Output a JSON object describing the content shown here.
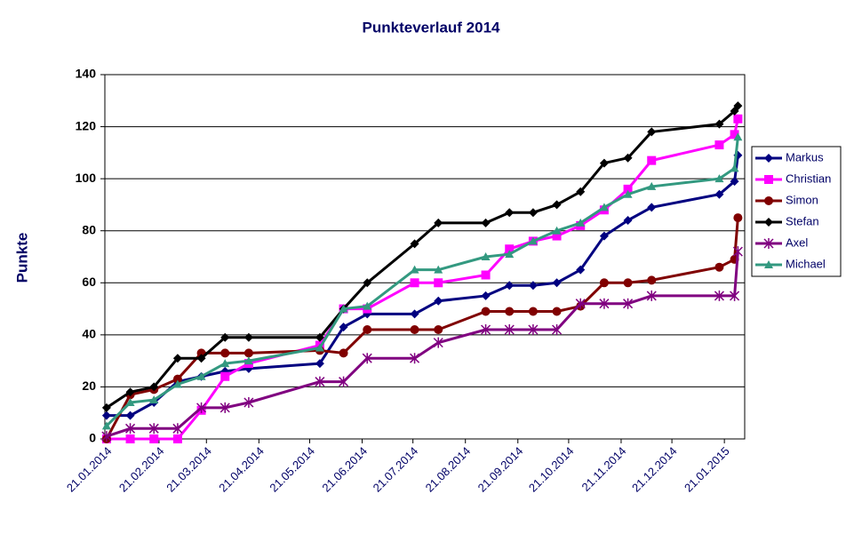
{
  "chart_data": {
    "type": "line",
    "title": "Punkteverlauf 2014",
    "y_label": "Punkte",
    "x": [
      "2014-01-21",
      "2014-02-04",
      "2014-02-18",
      "2014-03-04",
      "2014-03-18",
      "2014-04-01",
      "2014-04-15",
      "2014-05-27",
      "2014-06-10",
      "2014-06-24",
      "2014-07-22",
      "2014-08-05",
      "2014-09-02",
      "2014-09-16",
      "2014-09-30",
      "2014-10-14",
      "2014-10-28",
      "2014-11-11",
      "2014-11-25",
      "2014-12-09",
      "2015-01-18",
      "2015-01-27",
      "2015-01-29"
    ],
    "xlim": [
      "2014-01-20",
      "2015-02-02"
    ],
    "xticks": [
      {
        "value": "2014-01-21",
        "label": "21.01.2014"
      },
      {
        "value": "2014-02-21",
        "label": "21.02.2014"
      },
      {
        "value": "2014-03-21",
        "label": "21.03.2014"
      },
      {
        "value": "2014-04-21",
        "label": "21.04.2014"
      },
      {
        "value": "2014-05-21",
        "label": "21.05.2014"
      },
      {
        "value": "2014-06-21",
        "label": "21.06.2014"
      },
      {
        "value": "2014-07-21",
        "label": "21.07.2014"
      },
      {
        "value": "2014-08-21",
        "label": "21.08.2014"
      },
      {
        "value": "2014-09-21",
        "label": "21.09.2014"
      },
      {
        "value": "2014-10-21",
        "label": "21.10.2014"
      },
      {
        "value": "2014-11-21",
        "label": "21.11.2014"
      },
      {
        "value": "2014-12-21",
        "label": "21.12.2014"
      },
      {
        "value": "2015-01-21",
        "label": "21.01.2015"
      }
    ],
    "ylim": [
      0,
      140
    ],
    "yticks": [
      0,
      20,
      40,
      60,
      80,
      100,
      120,
      140
    ],
    "grid": true,
    "legend": "right",
    "series": [
      {
        "name": "Markus",
        "color": "#000080",
        "marker": "diamond",
        "values": [
          9,
          9,
          14,
          22,
          24,
          26,
          27,
          29,
          43,
          48,
          48,
          53,
          55,
          59,
          59,
          60,
          65,
          78,
          84,
          89,
          94,
          99,
          109
        ]
      },
      {
        "name": "Christian",
        "color": "#ff00ff",
        "marker": "square",
        "values": [
          0,
          0,
          0,
          0,
          11,
          24,
          29,
          36,
          50,
          50,
          60,
          60,
          63,
          73,
          76,
          78,
          82,
          88,
          96,
          107,
          113,
          117,
          123
        ]
      },
      {
        "name": "Simon",
        "color": "#800000",
        "marker": "circle",
        "values": [
          0,
          17,
          19,
          23,
          33,
          33,
          33,
          34,
          33,
          42,
          42,
          42,
          49,
          49,
          49,
          49,
          51,
          60,
          60,
          61,
          66,
          69,
          85
        ]
      },
      {
        "name": "Stefan",
        "color": "#000000",
        "marker": "diamond",
        "values": [
          12,
          18,
          20,
          31,
          31,
          39,
          39,
          39,
          50,
          60,
          75,
          83,
          83,
          87,
          87,
          90,
          95,
          106,
          108,
          118,
          121,
          126,
          128
        ]
      },
      {
        "name": "Axel",
        "color": "#800080",
        "marker": "cross",
        "values": [
          1,
          4,
          4,
          4,
          12,
          12,
          14,
          22,
          22,
          31,
          31,
          37,
          42,
          42,
          42,
          42,
          52,
          52,
          52,
          55,
          55,
          55,
          72
        ]
      },
      {
        "name": "Michael",
        "color": "#339980",
        "marker": "triangle",
        "values": [
          5,
          14,
          15,
          21,
          24,
          29,
          30,
          35,
          50,
          51,
          65,
          65,
          70,
          71,
          76,
          80,
          83,
          89,
          94,
          97,
          100,
          104,
          116
        ]
      }
    ]
  }
}
